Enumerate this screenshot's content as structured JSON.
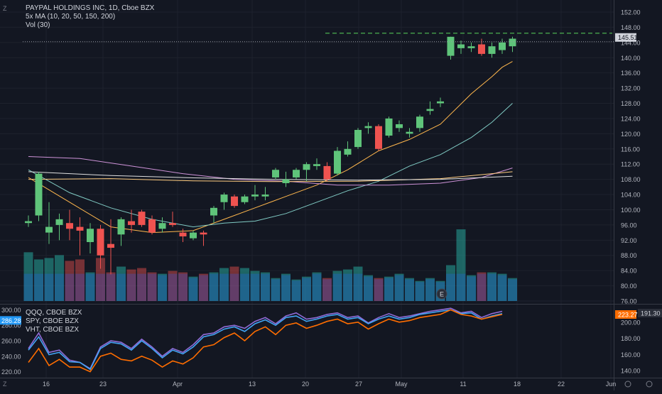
{
  "main_legend": {
    "title": "PAYPAL HOLDINGS INC, 1D, Cboe BZX",
    "ma_label": "5x MA (10, 20, 50, 150, 200)",
    "vol_label": "Vol (30)"
  },
  "main_axis": {
    "ticks": [
      "152.00",
      "148.00",
      "144.00",
      "140.00",
      "136.00",
      "132.00",
      "128.00",
      "124.00",
      "120.00",
      "116.00",
      "112.00",
      "108.00",
      "104.00",
      "100.00",
      "96.00",
      "92.00",
      "88.00",
      "84.00",
      "80.00",
      "76.00"
    ],
    "last_price": "145.51",
    "price_line_color": "#cccccc",
    "resistance_color": "#4caf50"
  },
  "lower_legend": {
    "line1": "QQQ, CBOE BZX",
    "line2": "SPY, CBOE BZX",
    "line3": "VHT, CBOE BZX"
  },
  "lower_left_axis": {
    "ticks": [
      "300.00",
      "280.00",
      "260.00",
      "240.00",
      "220.00"
    ],
    "badge": "286.28",
    "badge_color": "#2196f3"
  },
  "lower_right_axis": {
    "ticks": [
      "200.00",
      "180.00",
      "160.00",
      "140.00"
    ],
    "badge1": "223.27",
    "badge1_color": "#ff6d00",
    "badge2": "191.30",
    "badge2_color": "#2a2e39"
  },
  "x_axis": {
    "labels": [
      "16",
      "23",
      "Apr",
      "13",
      "20",
      "27",
      "May",
      "11",
      "18",
      "22",
      "Jun"
    ]
  },
  "earnings_marker": "E",
  "chart_data": [
    {
      "type": "candlestick",
      "title": "PAYPAL HOLDINGS INC, 1D, Cboe BZX",
      "ylim": [
        76,
        152
      ],
      "colors": {
        "up": "#26a69a",
        "down": "#ef5350",
        "up_body": "#5fc47a",
        "down_body": "#ef5350"
      },
      "candles": [
        {
          "o": 96.5,
          "h": 98.5,
          "l": 95.5,
          "c": 97.0
        },
        {
          "o": 98.5,
          "h": 110.0,
          "l": 97.0,
          "c": 109.5
        },
        {
          "o": 94.0,
          "h": 102.0,
          "l": 91.0,
          "c": 95.5
        },
        {
          "o": 96.0,
          "h": 99.0,
          "l": 92.0,
          "c": 97.5
        },
        {
          "o": 96.5,
          "h": 100.0,
          "l": 92.0,
          "c": 95.0
        },
        {
          "o": 95.5,
          "h": 98.0,
          "l": 88.0,
          "c": 94.5
        },
        {
          "o": 91.5,
          "h": 96.5,
          "l": 88.5,
          "c": 95.0
        },
        {
          "o": 95.0,
          "h": 96.0,
          "l": 84.5,
          "c": 88.0
        },
        {
          "o": 91.0,
          "h": 97.5,
          "l": 83.0,
          "c": 90.0
        },
        {
          "o": 93.5,
          "h": 98.0,
          "l": 90.5,
          "c": 97.5
        },
        {
          "o": 97.0,
          "h": 100.0,
          "l": 94.0,
          "c": 96.0
        },
        {
          "o": 99.5,
          "h": 100.0,
          "l": 95.5,
          "c": 96.0
        },
        {
          "o": 97.5,
          "h": 98.5,
          "l": 93.5,
          "c": 94.0
        },
        {
          "o": 95.0,
          "h": 98.0,
          "l": 94.0,
          "c": 96.5
        },
        {
          "o": 96.5,
          "h": 99.5,
          "l": 95.5,
          "c": 96.0
        },
        {
          "o": 94.0,
          "h": 95.0,
          "l": 91.5,
          "c": 93.0
        },
        {
          "o": 92.5,
          "h": 94.5,
          "l": 92.0,
          "c": 94.0
        },
        {
          "o": 94.0,
          "h": 94.5,
          "l": 90.5,
          "c": 93.5
        },
        {
          "o": 98.5,
          "h": 101.0,
          "l": 96.5,
          "c": 100.5
        },
        {
          "o": 102.0,
          "h": 104.5,
          "l": 100.0,
          "c": 104.0
        },
        {
          "o": 103.5,
          "h": 104.0,
          "l": 100.5,
          "c": 101.0
        },
        {
          "o": 102.0,
          "h": 104.0,
          "l": 101.5,
          "c": 103.5
        },
        {
          "o": 103.5,
          "h": 106.5,
          "l": 102.5,
          "c": 104.0
        },
        {
          "o": 103.5,
          "h": 106.0,
          "l": 102.5,
          "c": 104.0
        },
        {
          "o": 108.5,
          "h": 111.0,
          "l": 108.0,
          "c": 110.5
        },
        {
          "o": 107.0,
          "h": 110.0,
          "l": 106.0,
          "c": 108.0
        },
        {
          "o": 108.5,
          "h": 111.0,
          "l": 108.0,
          "c": 110.5
        },
        {
          "o": 110.5,
          "h": 112.5,
          "l": 107.5,
          "c": 112.0
        },
        {
          "o": 111.5,
          "h": 113.5,
          "l": 110.5,
          "c": 112.0
        },
        {
          "o": 111.5,
          "h": 112.5,
          "l": 107.5,
          "c": 108.0
        },
        {
          "o": 109.5,
          "h": 116.5,
          "l": 109.0,
          "c": 115.5
        },
        {
          "o": 114.5,
          "h": 118.0,
          "l": 114.0,
          "c": 116.0
        },
        {
          "o": 116.5,
          "h": 121.5,
          "l": 116.0,
          "c": 121.0
        },
        {
          "o": 121.5,
          "h": 123.0,
          "l": 120.0,
          "c": 122.0
        },
        {
          "o": 122.0,
          "h": 122.5,
          "l": 115.5,
          "c": 116.0
        },
        {
          "o": 119.5,
          "h": 124.5,
          "l": 119.0,
          "c": 124.0
        },
        {
          "o": 121.5,
          "h": 123.5,
          "l": 120.5,
          "c": 122.5
        },
        {
          "o": 120.0,
          "h": 121.5,
          "l": 119.0,
          "c": 120.5
        },
        {
          "o": 121.5,
          "h": 125.0,
          "l": 120.5,
          "c": 124.5
        },
        {
          "o": 126.0,
          "h": 128.5,
          "l": 125.0,
          "c": 126.5
        },
        {
          "o": 128.0,
          "h": 129.5,
          "l": 127.0,
          "c": 128.5
        },
        {
          "o": 140.5,
          "h": 145.5,
          "l": 139.5,
          "c": 145.5
        },
        {
          "o": 142.5,
          "h": 144.5,
          "l": 141.0,
          "c": 143.5
        },
        {
          "o": 142.5,
          "h": 144.0,
          "l": 141.5,
          "c": 143.0
        },
        {
          "o": 143.5,
          "h": 145.0,
          "l": 140.5,
          "c": 141.0
        },
        {
          "o": 141.0,
          "h": 144.0,
          "l": 140.0,
          "c": 143.0
        },
        {
          "o": 142.0,
          "h": 145.0,
          "l": 141.0,
          "c": 144.0
        },
        {
          "o": 143.0,
          "h": 145.5,
          "l": 141.5,
          "c": 145.0
        }
      ],
      "moving_averages": [
        {
          "name": "MA 10",
          "color": "#ffb74d",
          "values": [
            [
              0,
              108.5
            ],
            [
              4,
              102
            ],
            [
              8,
              95.5
            ],
            [
              12,
              94
            ],
            [
              16,
              94.5
            ],
            [
              19,
              97.5
            ],
            [
              22,
              100.5
            ],
            [
              25,
              103.5
            ],
            [
              28,
              106.5
            ],
            [
              31,
              110.5
            ],
            [
              34,
              115.5
            ],
            [
              37,
              118.5
            ],
            [
              40,
              122.5
            ],
            [
              43,
              130.5
            ],
            [
              45,
              135
            ],
            [
              46,
              137.5
            ],
            [
              47,
              139.0
            ]
          ]
        },
        {
          "name": "MA 20",
          "color": "#80cbc4",
          "values": [
            [
              0,
              110.5
            ],
            [
              4,
              104.5
            ],
            [
              8,
              100.5
            ],
            [
              12,
              97.5
            ],
            [
              16,
              95.5
            ],
            [
              19,
              96.5
            ],
            [
              22,
              97
            ],
            [
              25,
              99
            ],
            [
              28,
              102
            ],
            [
              31,
              105
            ],
            [
              34,
              107.5
            ],
            [
              37,
              111.5
            ],
            [
              40,
              114.5
            ],
            [
              43,
              119
            ],
            [
              45,
              123
            ],
            [
              47,
              128
            ]
          ]
        },
        {
          "name": "MA 50",
          "color": "#ce93d8",
          "values": [
            [
              0,
              114
            ],
            [
              5,
              113.5
            ],
            [
              10,
              111.5
            ],
            [
              15,
              109.5
            ],
            [
              20,
              108
            ],
            [
              25,
              107.5
            ],
            [
              30,
              106.5
            ],
            [
              35,
              106.5
            ],
            [
              40,
              107
            ],
            [
              44,
              108.5
            ],
            [
              47,
              111.0
            ]
          ]
        },
        {
          "name": "MA 150",
          "color": "#ffcc80",
          "values": [
            [
              0,
              108
            ],
            [
              8,
              108.2
            ],
            [
              16,
              107.6
            ],
            [
              24,
              107.4
            ],
            [
              32,
              107.5
            ],
            [
              40,
              108.2
            ],
            [
              47,
              110.0
            ]
          ]
        },
        {
          "name": "MA 200",
          "color": "#e0e0e0",
          "values": [
            [
              0,
              110
            ],
            [
              8,
              109
            ],
            [
              16,
              108.4
            ],
            [
              24,
              108
            ],
            [
              32,
              107.8
            ],
            [
              40,
              108.0
            ],
            [
              47,
              108.8
            ]
          ]
        }
      ],
      "volume": [
        3.4,
        2.9,
        3.0,
        3.2,
        2.8,
        2.9,
        2.0,
        3.0,
        2.0,
        2.4,
        2.2,
        2.3,
        2.0,
        1.9,
        2.1,
        2.0,
        1.7,
        1.9,
        2.0,
        2.3,
        2.4,
        2.3,
        2.1,
        2.0,
        1.6,
        1.9,
        1.5,
        1.7,
        2.0,
        1.6,
        2.1,
        2.2,
        2.4,
        1.8,
        1.6,
        1.7,
        1.9,
        1.6,
        1.4,
        1.6,
        1.4,
        2.5,
        5.0,
        1.8,
        2.0,
        2.0,
        1.9,
        1.6
      ],
      "resistance_level": 145.51
    },
    {
      "type": "line",
      "series": [
        {
          "name": "QQQ, CBOE BZX",
          "color": "#8f6bd6",
          "values": [
            250,
            270,
            245,
            248,
            235,
            232,
            224,
            252,
            260,
            258,
            250,
            262,
            252,
            240,
            250,
            245,
            255,
            268,
            270,
            278,
            280,
            276,
            285,
            290,
            282,
            292,
            296,
            288,
            290,
            294,
            296,
            290,
            292,
            283,
            290,
            295,
            290,
            292,
            295,
            298,
            300,
            302,
            296,
            298,
            290,
            295,
            298
          ]
        },
        {
          "name": "SPY, CBOE BZX",
          "color": "#42a5f5",
          "values": [
            248,
            265,
            242,
            245,
            233,
            232,
            223,
            250,
            258,
            256,
            248,
            260,
            250,
            238,
            248,
            243,
            252,
            265,
            268,
            275,
            278,
            272,
            282,
            287,
            280,
            290,
            292,
            285,
            288,
            292,
            294,
            288,
            290,
            282,
            288,
            292,
            288,
            290,
            294,
            296,
            298,
            300,
            295,
            296,
            288,
            292,
            295
          ]
        },
        {
          "name": "VHT, CBOE BZX",
          "color": "#ff6d00",
          "values": [
            232,
            250,
            228,
            236,
            226,
            226,
            220,
            240,
            244,
            236,
            234,
            240,
            235,
            226,
            234,
            230,
            238,
            252,
            255,
            264,
            270,
            260,
            272,
            278,
            268,
            280,
            283,
            276,
            280,
            285,
            288,
            282,
            284,
            275,
            282,
            288,
            284,
            286,
            290,
            292,
            294,
            300,
            294,
            292,
            288,
            291,
            294
          ]
        }
      ],
      "ylim": [
        216,
        304
      ]
    }
  ]
}
